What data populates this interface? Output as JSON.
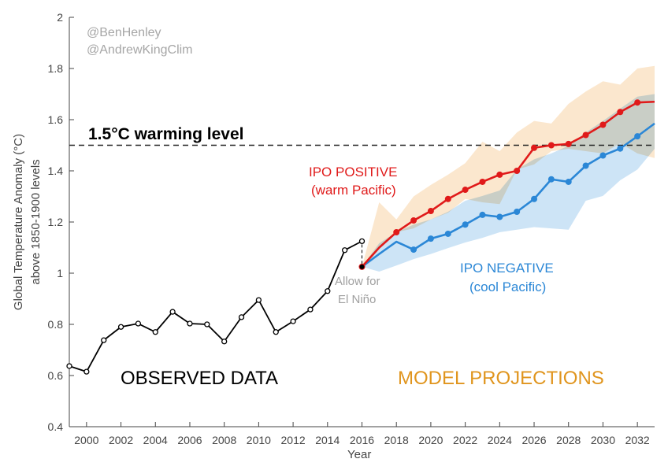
{
  "chart_data": {
    "type": "line",
    "title": "",
    "xlabel": "Year",
    "ylabel_lines": [
      "Global Temperature Anomaly (°C)",
      "above 1850-1900 levels"
    ],
    "xlim": [
      1999,
      2033
    ],
    "ylim": [
      0.4,
      2.0
    ],
    "xticks": [
      2000,
      2002,
      2004,
      2006,
      2008,
      2010,
      2012,
      2014,
      2016,
      2018,
      2020,
      2022,
      2024,
      2026,
      2028,
      2030,
      2032
    ],
    "yticks": [
      0.4,
      0.6,
      0.8,
      1,
      1.2,
      1.4,
      1.6,
      1.8,
      2
    ],
    "ytick_labels": [
      "0.4",
      "0.6",
      "0.8",
      "1",
      "1.2",
      "1.4",
      "1.6",
      "1.8",
      "2"
    ],
    "grid": false,
    "threshold": {
      "value": 1.5,
      "label": "1.5°C warming level"
    },
    "credits": [
      "@BenHenley",
      "@AndrewKingClim"
    ],
    "observed": {
      "name": "Observed data",
      "label": "OBSERVED DATA",
      "color": "#000000",
      "x": [
        1999,
        2000,
        2001,
        2002,
        2003,
        2004,
        2005,
        2006,
        2007,
        2008,
        2009,
        2010,
        2011,
        2012,
        2013,
        2014,
        2015,
        2016
      ],
      "y": [
        0.637,
        0.615,
        0.738,
        0.79,
        0.803,
        0.77,
        0.849,
        0.803,
        0.8,
        0.733,
        0.828,
        0.895,
        0.77,
        0.812,
        0.858,
        0.93,
        1.09,
        1.125
      ]
    },
    "el_nino_adjust": {
      "label_lines": [
        "Allow for",
        "El Niño"
      ],
      "from": 1.125,
      "to": 1.025,
      "year": 2016
    },
    "projection_label": "MODEL PROJECTIONS",
    "projection_label_color": "#e0951e",
    "series": [
      {
        "name": "IPO POSITIVE",
        "label_lines": [
          "IPO POSITIVE",
          "(warm Pacific)"
        ],
        "color": "#e01a1a",
        "band_color": "#fae3c6",
        "x": [
          2016,
          2017,
          2018,
          2019,
          2020,
          2021,
          2022,
          2023,
          2024,
          2025,
          2026,
          2027,
          2028,
          2029,
          2030,
          2031,
          2032,
          2033
        ],
        "y": [
          1.025,
          1.1,
          1.16,
          1.206,
          1.243,
          1.29,
          1.326,
          1.357,
          1.385,
          1.4,
          1.49,
          1.5,
          1.505,
          1.54,
          1.58,
          1.63,
          1.667,
          1.67
        ],
        "markers": [
          2016,
          2018,
          2019,
          2020,
          2021,
          2022,
          2023,
          2024,
          2025,
          2026,
          2027,
          2028,
          2029,
          2030,
          2031,
          2032
        ],
        "band_x": [
          2016,
          2017,
          2018,
          2019,
          2020,
          2021,
          2022,
          2023,
          2024,
          2025,
          2026,
          2027,
          2028,
          2029,
          2030,
          2031,
          2032,
          2033
        ],
        "band_upper": [
          1.025,
          1.277,
          1.21,
          1.3,
          1.345,
          1.385,
          1.43,
          1.514,
          1.477,
          1.55,
          1.595,
          1.585,
          1.662,
          1.71,
          1.75,
          1.737,
          1.8,
          1.81
        ],
        "band_lower": [
          1.025,
          1.098,
          1.16,
          1.175,
          1.21,
          1.236,
          1.29,
          1.277,
          1.27,
          1.405,
          1.425,
          1.477,
          1.486,
          1.477,
          1.468,
          1.508,
          1.468,
          1.45
        ]
      },
      {
        "name": "IPO NEGATIVE",
        "label_lines": [
          "IPO NEGATIVE",
          "(cool Pacific)"
        ],
        "color": "#2b87d6",
        "band_color": "#c4dff5",
        "x": [
          2016,
          2017,
          2018,
          2019,
          2020,
          2021,
          2022,
          2023,
          2024,
          2025,
          2026,
          2027,
          2028,
          2029,
          2030,
          2031,
          2032,
          2033
        ],
        "y": [
          1.025,
          1.075,
          1.123,
          1.092,
          1.135,
          1.154,
          1.19,
          1.228,
          1.22,
          1.24,
          1.29,
          1.367,
          1.357,
          1.42,
          1.46,
          1.487,
          1.535,
          1.585
        ],
        "markers": [
          2019,
          2020,
          2021,
          2022,
          2023,
          2024,
          2025,
          2026,
          2027,
          2028,
          2029,
          2030,
          2031,
          2032
        ],
        "band_x": [
          2016,
          2017,
          2018,
          2019,
          2020,
          2021,
          2022,
          2023,
          2024,
          2025,
          2026,
          2027,
          2028,
          2029,
          2030,
          2031,
          2032,
          2033
        ],
        "band_upper": [
          1.025,
          1.117,
          1.16,
          1.19,
          1.21,
          1.24,
          1.283,
          1.302,
          1.323,
          1.405,
          1.445,
          1.468,
          1.498,
          1.55,
          1.595,
          1.643,
          1.69,
          1.7
        ],
        "band_lower": [
          1.025,
          1.006,
          1.03,
          1.055,
          1.075,
          1.098,
          1.12,
          1.138,
          1.16,
          1.17,
          1.18,
          1.175,
          1.17,
          1.283,
          1.302,
          1.363,
          1.405,
          1.486
        ]
      }
    ]
  }
}
